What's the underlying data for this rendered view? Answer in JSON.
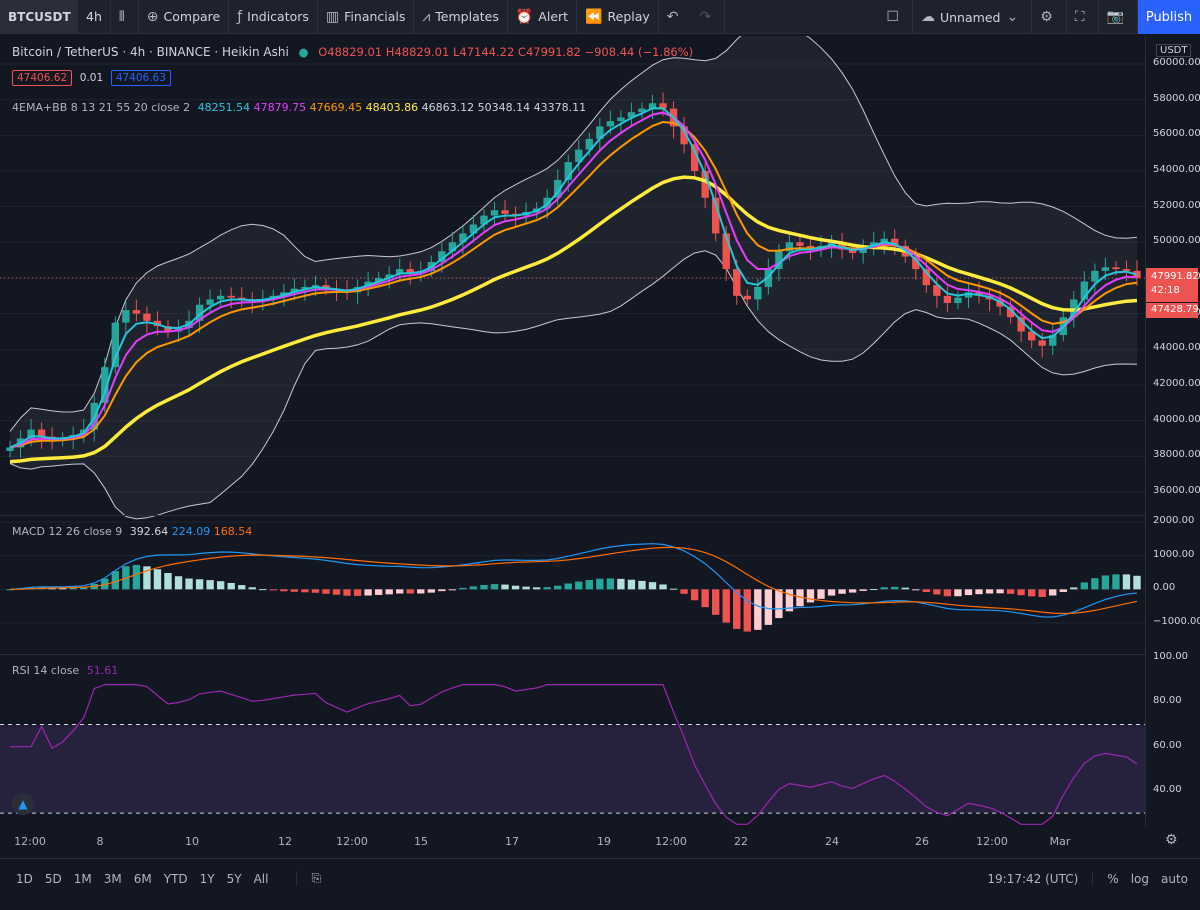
{
  "toolbar": {
    "symbol": "BTCUSDT",
    "interval": "4h",
    "compare": "Compare",
    "indicators": "Indicators",
    "financials": "Financials",
    "templates": "Templates",
    "alert": "Alert",
    "replay": "Replay",
    "layout_name": "Unnamed",
    "publish": "Publish"
  },
  "header": {
    "title": "Bitcoin / TetherUS · 4h · BINANCE · Heikin Ashi",
    "o": "O48829.01",
    "h": "H48829.01",
    "l": "L47144.22",
    "c": "C47991.82",
    "change": "−908.44 (−1.86%)",
    "bid": "47406.62",
    "spread": "0.01",
    "ask": "47406.63"
  },
  "ema_legend": {
    "name": "4EMA+BB 8 13 21 55 20 close 2",
    "v1": "48251.54",
    "v2": "47879.75",
    "v3": "47669.45",
    "v4": "48403.86",
    "v5": "46863.12",
    "v6": "50348.14",
    "v7": "43378.11"
  },
  "macd_legend": {
    "name": "MACD 12 26 close 9",
    "hist": "392.64",
    "macd": "224.09",
    "signal": "168.54"
  },
  "rsi_legend": {
    "name": "RSI 14 close",
    "value": "51.61"
  },
  "price_axis": {
    "currency": "USDT",
    "labels": [
      "60000.00",
      "58000.00",
      "56000.00",
      "54000.00",
      "52000.00",
      "50000.00",
      "48000.00",
      "46000.00",
      "44000.00",
      "42000.00",
      "40000.00",
      "38000.00",
      "36000.00"
    ],
    "last_price": "47991.82",
    "countdown": "42:18",
    "lower_band": "47428.79"
  },
  "macd_axis": [
    "2000.00",
    "1000.00",
    "0.00",
    "−1000.00"
  ],
  "rsi_axis": [
    "100.00",
    "80.00",
    "60.00",
    "40.00"
  ],
  "time_axis": [
    "12:00",
    "8",
    "10",
    "12",
    "12:00",
    "15",
    "17",
    "19",
    "12:00",
    "22",
    "24",
    "26",
    "12:00",
    "Mar"
  ],
  "ranges": [
    "1D",
    "5D",
    "1M",
    "3M",
    "6M",
    "YTD",
    "1Y",
    "5Y",
    "All"
  ],
  "clock": "19:17:42 (UTC)",
  "scale_opts": [
    "%",
    "log",
    "auto"
  ],
  "colors": {
    "up": "#26a69a",
    "down": "#ef5350",
    "ema8": "#26c6da",
    "ema13": "#e040fb",
    "ema21": "#ff9800",
    "ema55": "#ffeb3b",
    "rsi": "#9c27b0"
  },
  "chart_data": {
    "type": "line",
    "price_series": {
      "name": "Heikin Ashi close",
      "values": [
        38500,
        39000,
        39500,
        39100,
        38900,
        39000,
        39200,
        39500,
        41000,
        43000,
        45500,
        46200,
        46000,
        45600,
        45300,
        45000,
        45200,
        45600,
        46500,
        46800,
        47000,
        46900,
        46800,
        46700,
        46800,
        47000,
        47200,
        47400,
        47500,
        47600,
        47400,
        47300,
        47200,
        47500,
        47800,
        48000,
        48200,
        48500,
        48300,
        48400,
        48900,
        49500,
        50000,
        50500,
        51000,
        51500,
        51800,
        51600,
        51500,
        51700,
        51900,
        52500,
        53500,
        54500,
        55200,
        55800,
        56500,
        56800,
        57000,
        57300,
        57500,
        57800,
        57500,
        56500,
        55500,
        54000,
        52500,
        50500,
        48500,
        47000,
        46800,
        47500,
        48500,
        49500,
        50000,
        49800,
        49600,
        49800,
        50000,
        49600,
        49400,
        49700,
        50000,
        50200,
        49800,
        49200,
        48500,
        47600,
        47000,
        46600,
        46900,
        47200,
        47000,
        46800,
        46400,
        45800,
        45000,
        44500,
        44200,
        44800,
        45800,
        46800,
        47800,
        48400,
        48600,
        48500,
        48400,
        48000
      ],
      "ylim": [
        35000,
        61000
      ]
    }
  }
}
